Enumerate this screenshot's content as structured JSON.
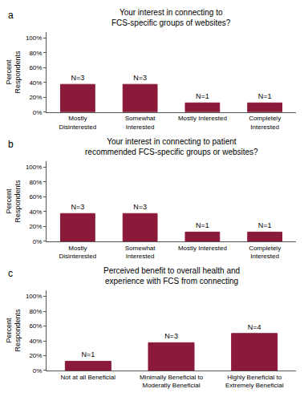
{
  "chart_data": [
    {
      "type": "bar",
      "panel_label": "a",
      "title": "Your interest in connecting to\nFCS-specific groups of websites?",
      "categories": [
        "Mostly\nDisinterested",
        "Somewhat\nInterested",
        "Mostly Interested",
        "Completely\nInterested"
      ],
      "values": [
        37.5,
        37.5,
        12.5,
        12.5
      ],
      "annotations": [
        "N=3",
        "N=3",
        "N=1",
        "N=1"
      ],
      "color": "#8B1A3A",
      "ylabel": "Percent\nRespondents",
      "ylim": [
        0,
        108
      ],
      "yticks": [
        {
          "value": 0,
          "label": "0%"
        },
        {
          "value": 20,
          "label": "20%"
        },
        {
          "value": 40,
          "label": "40%"
        },
        {
          "value": 60,
          "label": "60%"
        },
        {
          "value": 80,
          "label": "80%"
        },
        {
          "value": 100,
          "label": "100%"
        }
      ],
      "grid": false
    },
    {
      "type": "bar",
      "panel_label": "b",
      "title": "Your interest in connecting to patient\nrecommended FCS-specific groups or websites?",
      "categories": [
        "Mostly\nDisinterested",
        "Somewhat\nInterested",
        "Mostly Interested",
        "Completely\nInterested"
      ],
      "values": [
        37.5,
        37.5,
        12.5,
        12.5
      ],
      "annotations": [
        "N=3",
        "N=3",
        "N=1",
        "N=1"
      ],
      "color": "#8B1A3A",
      "ylabel": "Percent\nRespondents",
      "ylim": [
        0,
        108
      ],
      "yticks": [
        {
          "value": 0,
          "label": "0%"
        },
        {
          "value": 20,
          "label": "20%"
        },
        {
          "value": 40,
          "label": "40%"
        },
        {
          "value": 60,
          "label": "60%"
        },
        {
          "value": 80,
          "label": "80%"
        },
        {
          "value": 100,
          "label": "100%"
        }
      ],
      "grid": false
    },
    {
      "type": "bar",
      "panel_label": "c",
      "title": "Perceived benefit to overall health and\nexperience with FCS from connecting",
      "categories": [
        "Not at all Beneficial",
        "Minimally Beneficial to\nModeratly Beneficial",
        "Highly Beneficial to\nExtremely Beneficial"
      ],
      "values": [
        12.5,
        37.5,
        50.0
      ],
      "annotations": [
        "N=1",
        "N=3",
        "N=4"
      ],
      "color": "#8B1A3A",
      "ylabel": "Percent\nRespondents",
      "ylim": [
        0,
        108
      ],
      "yticks": [
        {
          "value": 0,
          "label": "0%"
        },
        {
          "value": 20,
          "label": "20%"
        },
        {
          "value": 40,
          "label": "40%"
        },
        {
          "value": 60,
          "label": "60%"
        },
        {
          "value": 80,
          "label": "80%"
        },
        {
          "value": 100,
          "label": "100%"
        }
      ],
      "grid": false
    }
  ]
}
